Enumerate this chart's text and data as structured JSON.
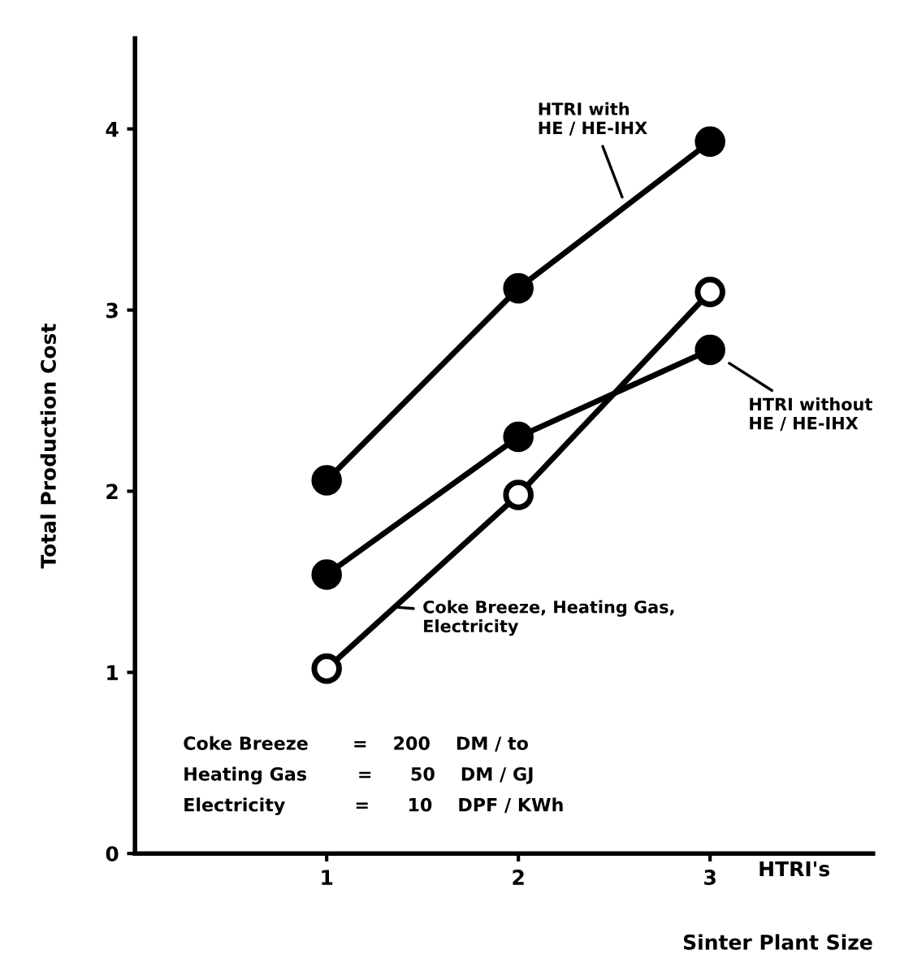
{
  "chart_data": {
    "type": "line",
    "xlabel": "Sinter Plant Size",
    "ylabel": "Total Production Cost",
    "x": [
      1,
      2,
      3
    ],
    "xlim": [
      0,
      3.85
    ],
    "xticks": [
      1,
      2,
      3
    ],
    "ylim": [
      0,
      4.5
    ],
    "yticks": [
      0,
      1,
      2,
      3,
      4
    ],
    "marker": "circle",
    "line_style": "solid",
    "grid": false,
    "series": [
      {
        "name": "HTRI with\nHE / HE-IHX",
        "color": "#000000",
        "values": [
          2.06,
          3.12,
          3.93
        ]
      },
      {
        "name": "HTRI without\nHE / HE-IHX",
        "color": "#000000",
        "values": [
          1.54,
          2.3,
          2.78
        ]
      },
      {
        "name": "Coke Breeze, Heating Gas,\nElectricity",
        "color": "#000000",
        "values": [
          1.02,
          1.98,
          3.1
        ]
      }
    ],
    "annotations": [
      "HTRI's",
      "Coke Breeze       =    200    DM / to",
      "Heating Gas        =      50    DM / GJ",
      "Electricity           =      10    DPF / KWh"
    ]
  }
}
